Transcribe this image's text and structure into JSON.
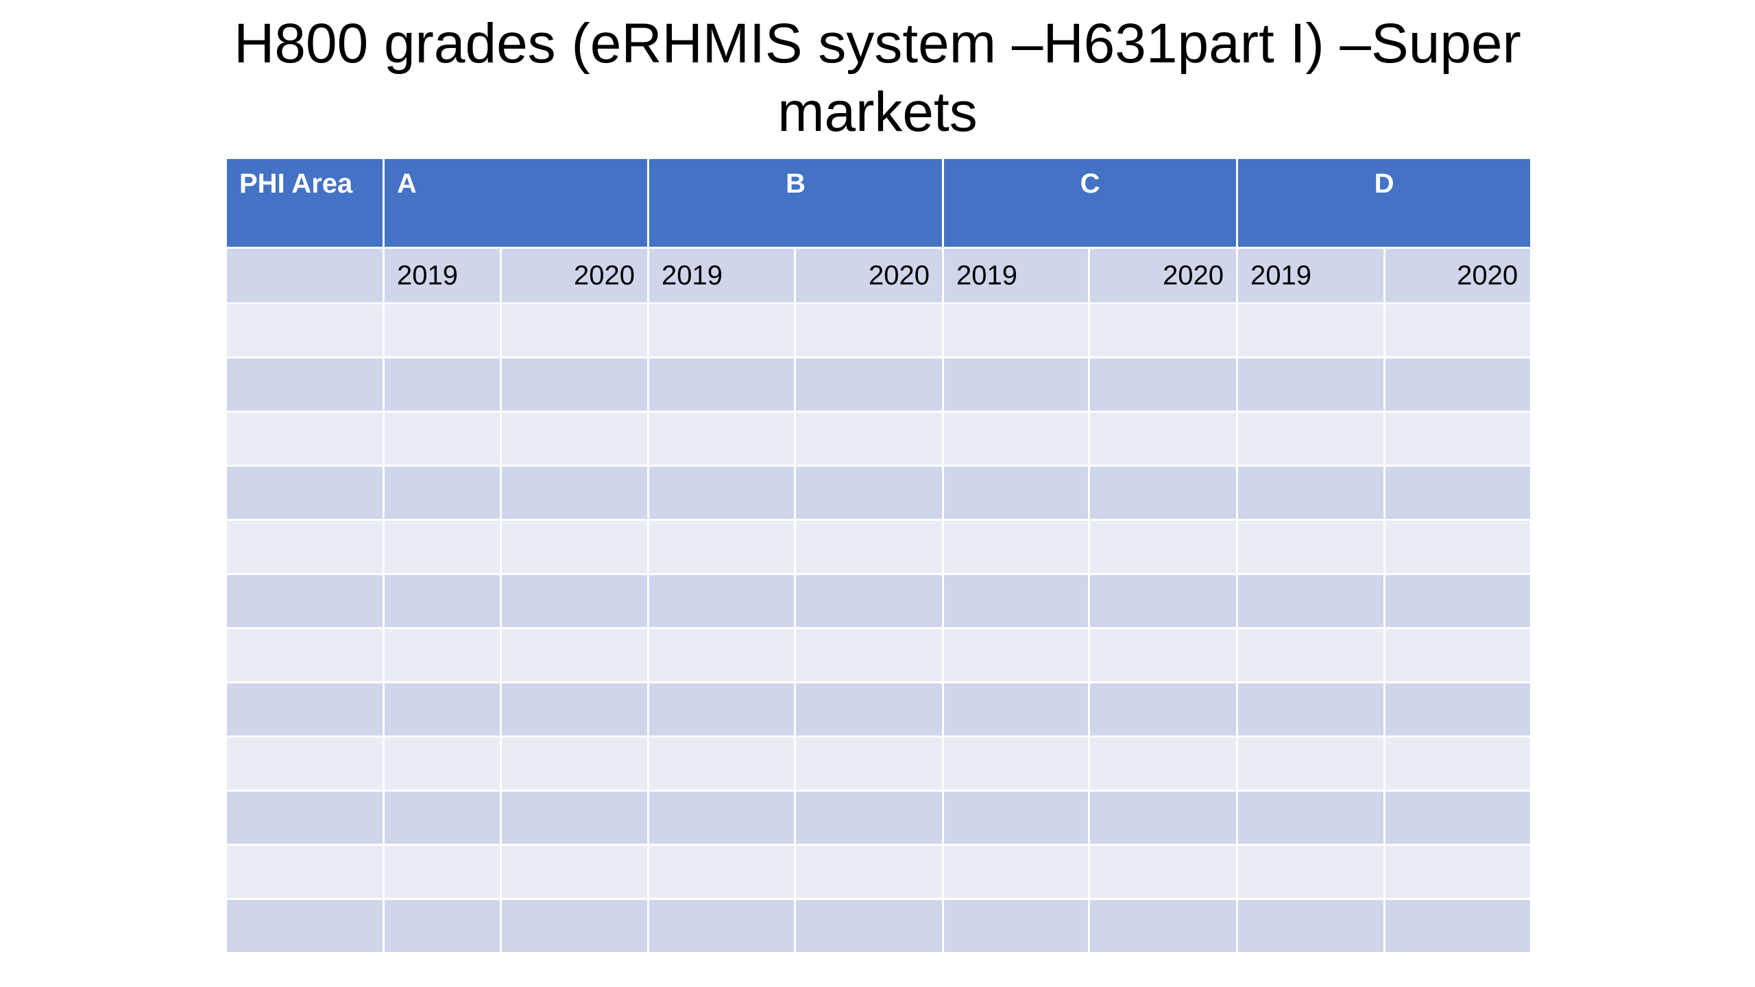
{
  "title": "H800 grades (eRHMIS system –H631part I) –Super markets",
  "table": {
    "header": [
      "PHI Area",
      "A",
      "B",
      "C",
      "D"
    ],
    "years": [
      [
        "2019",
        "2020"
      ],
      [
        "2019",
        "2020"
      ],
      [
        "2019",
        "2020"
      ],
      [
        "2019",
        "2020"
      ]
    ]
  }
}
